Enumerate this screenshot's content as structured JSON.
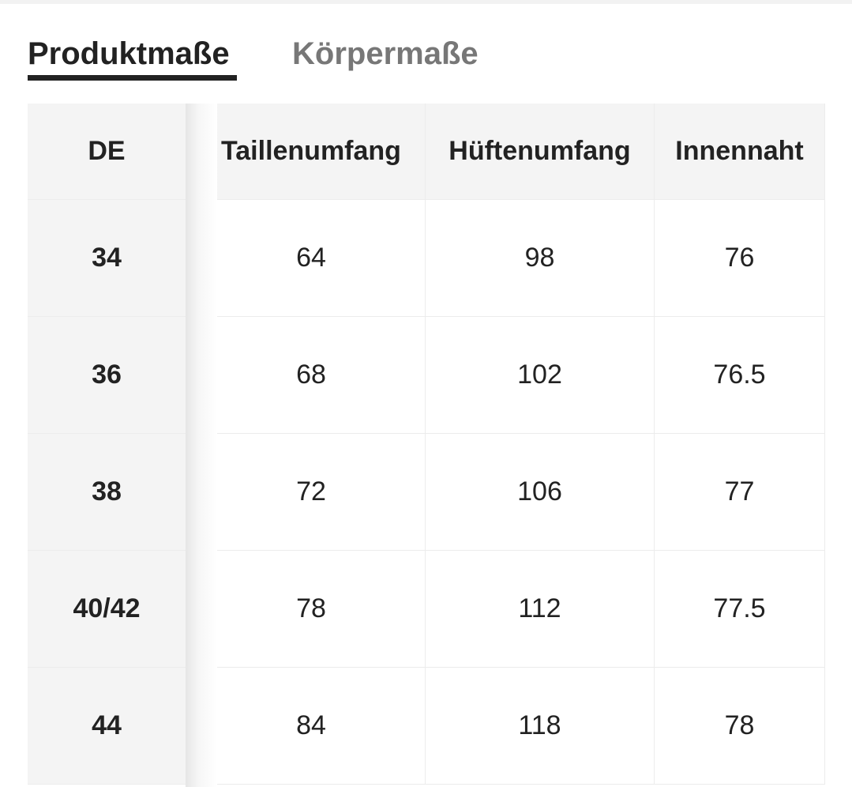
{
  "tabs": {
    "active": "Produktmaße",
    "inactive": "Körpermaße"
  },
  "table": {
    "header": [
      "DE",
      "Taillenumfang",
      "Hüftenumfang",
      "Innennaht"
    ],
    "rows": [
      [
        "34",
        "64",
        "98",
        "76"
      ],
      [
        "36",
        "68",
        "102",
        "76.5"
      ],
      [
        "38",
        "72",
        "106",
        "77"
      ],
      [
        "40/42",
        "78",
        "112",
        "77.5"
      ],
      [
        "44",
        "84",
        "118",
        "78"
      ]
    ]
  }
}
